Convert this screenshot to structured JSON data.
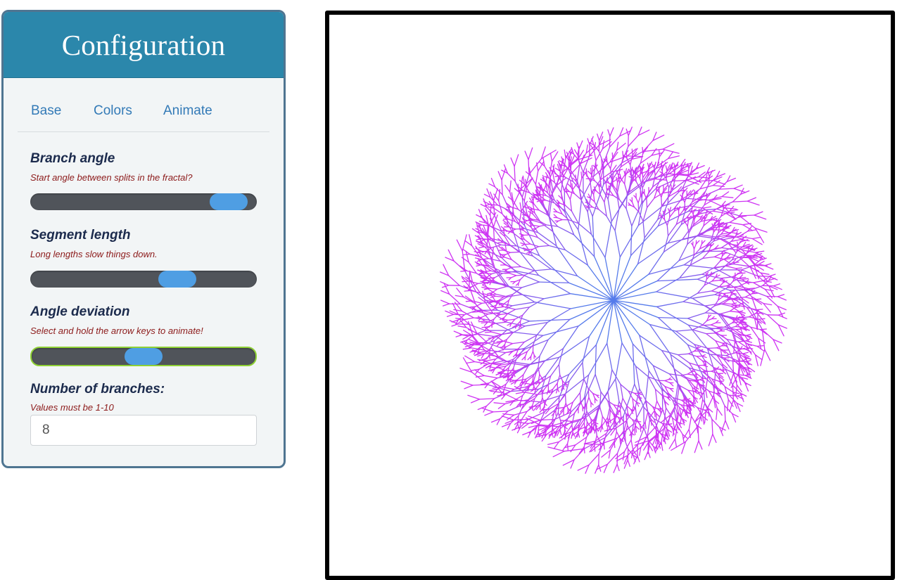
{
  "config": {
    "title": "Configuration",
    "tabs": [
      {
        "label": "Base",
        "active": true
      },
      {
        "label": "Colors",
        "active": false
      },
      {
        "label": "Animate",
        "active": false
      }
    ],
    "fields": {
      "branch_angle": {
        "title": "Branch angle",
        "help": "Start angle between splits in the fractal?",
        "value_fraction": 0.95
      },
      "segment_length": {
        "title": "Segment length",
        "help": "Long lengths slow things down.",
        "value_fraction": 0.68
      },
      "angle_deviation": {
        "title": "Angle deviation",
        "help": "Select and hold the arrow keys to animate!",
        "value_fraction": 0.5,
        "focused": true
      },
      "number_of_branches": {
        "title": "Number of branches:",
        "help": "Values must be 1-10",
        "value": "8"
      }
    }
  },
  "canvas": {
    "branches": 8,
    "colors": {
      "trunk": "#3f87ea",
      "tip": "#cf34f3",
      "slider_track": "#50545a",
      "slider_thumb": "#4f9ee3",
      "header": "#2b87ab",
      "focus": "#8fd135"
    }
  }
}
